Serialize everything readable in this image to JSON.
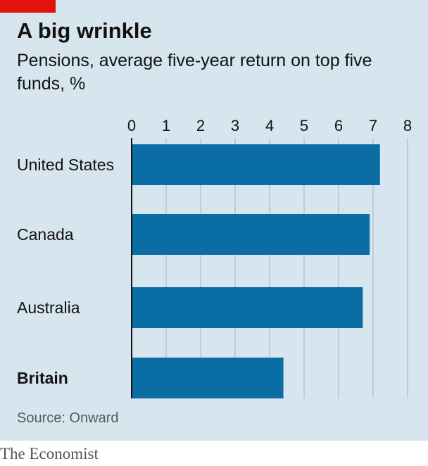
{
  "colors": {
    "background": "#d6e5ee",
    "accent_tag": "#e3120b",
    "bar": "#0a6ea5",
    "grid": "#b5c4cd",
    "axis": "#121212"
  },
  "source": "Source: Onward",
  "brand": "The Economist",
  "chart_data": {
    "type": "bar",
    "orientation": "horizontal",
    "title": "A big wrinkle",
    "subtitle": "Pensions, average five-year return on top five funds, %",
    "categories": [
      "United States",
      "Canada",
      "Australia",
      "Britain"
    ],
    "highlighted_category": "Britain",
    "values": [
      7.2,
      6.9,
      6.7,
      4.4
    ],
    "xlim": [
      0,
      8
    ],
    "x_ticks": [
      "0",
      "1",
      "2",
      "3",
      "4",
      "5",
      "6",
      "7",
      "8"
    ],
    "x_axis_position": "top",
    "grid": true,
    "legend": "none"
  }
}
